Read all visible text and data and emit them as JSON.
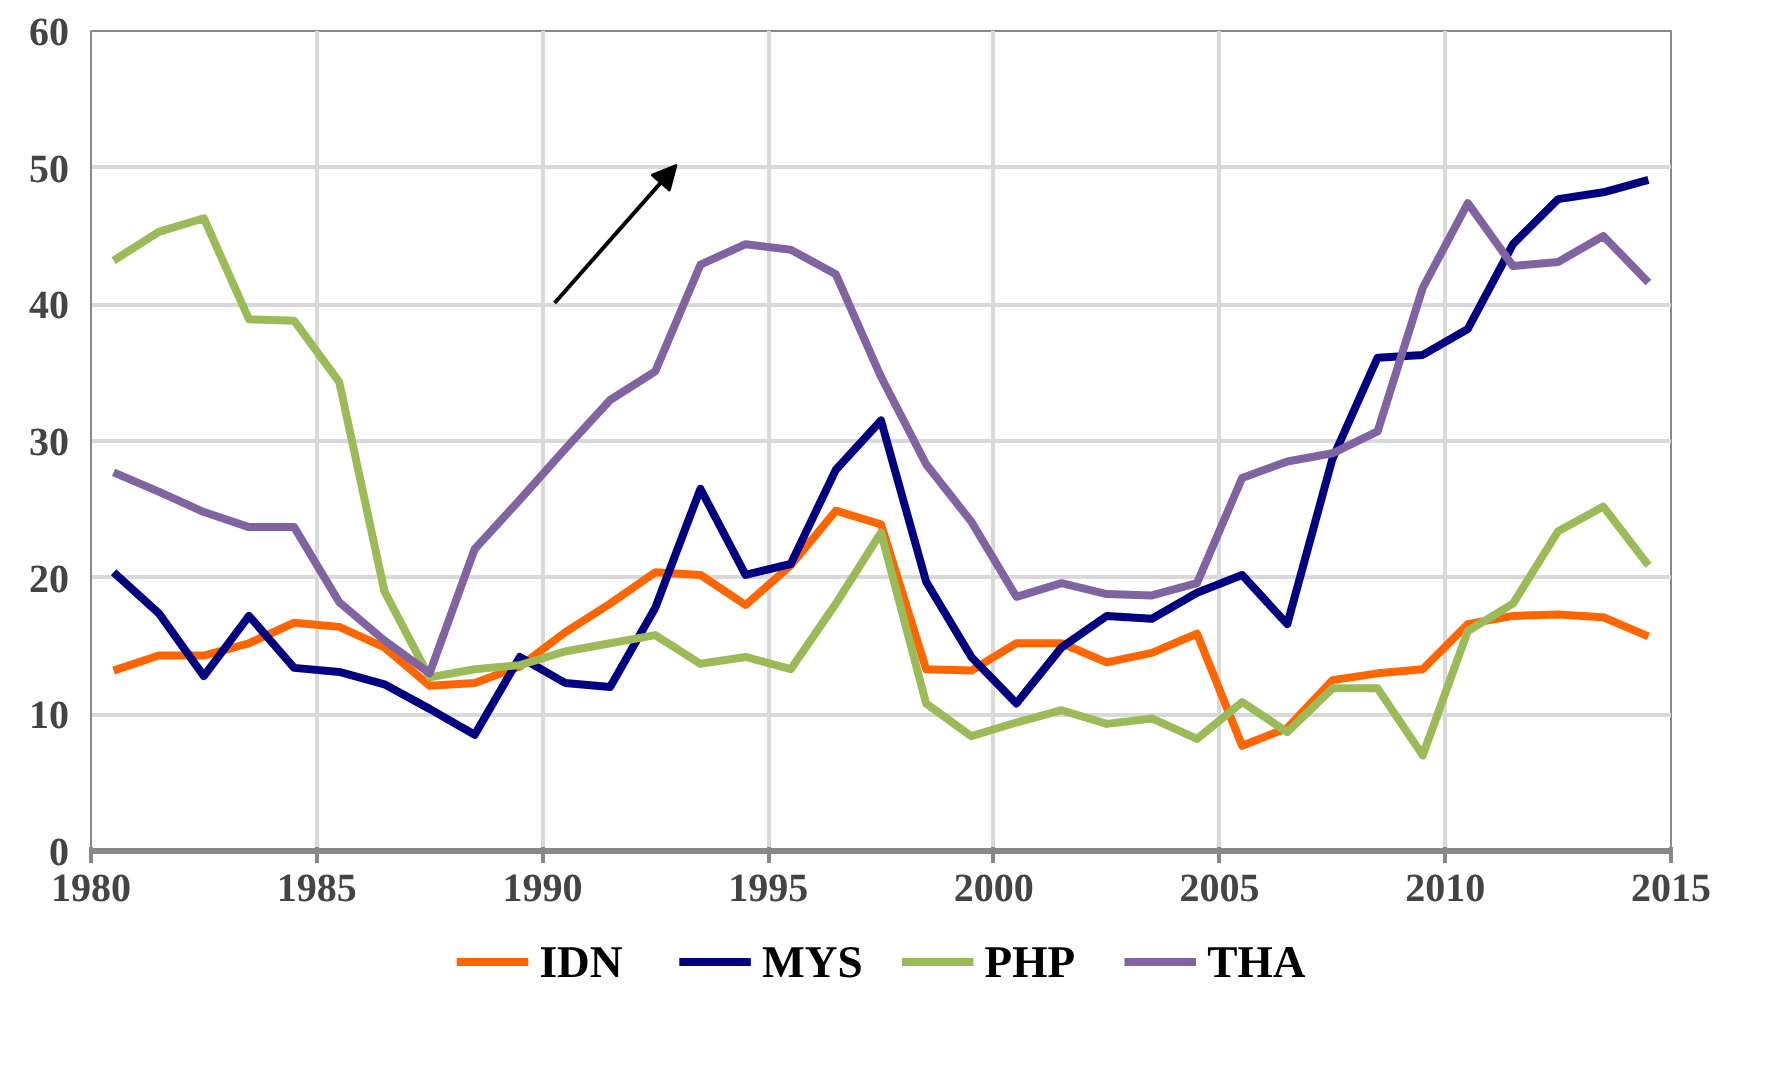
{
  "chart_data": {
    "type": "line",
    "x": [
      1980.5,
      1981.5,
      1982.5,
      1983.5,
      1984.5,
      1985.5,
      1986.5,
      1987.5,
      1988.5,
      1989.5,
      1990.5,
      1991.5,
      1992.5,
      1993.5,
      1994.5,
      1995.5,
      1996.5,
      1997.5,
      1998.5,
      1999.5,
      2000.5,
      2001.5,
      2002.5,
      2003.5,
      2004.5,
      2005.5,
      2006.5,
      2007.5,
      2008.5,
      2009.5,
      2010.5,
      2011.5,
      2012.5,
      2013.5,
      2014.5
    ],
    "series": [
      {
        "name": "IDN",
        "color": "#ff6600",
        "values": [
          13.2,
          14.3,
          14.3,
          15.2,
          16.7,
          16.4,
          14.9,
          12.1,
          12.3,
          13.5,
          16.0,
          18.1,
          20.4,
          20.2,
          18.0,
          20.9,
          24.9,
          23.9,
          13.3,
          13.2,
          15.2,
          15.2,
          13.8,
          14.5,
          15.9,
          7.7,
          9.0,
          12.5,
          13.0,
          13.3,
          16.6,
          17.2,
          17.3,
          17.1,
          15.7
        ]
      },
      {
        "name": "MYS",
        "color": "#000080",
        "values": [
          20.4,
          17.4,
          12.8,
          17.2,
          13.4,
          13.1,
          12.2,
          10.4,
          8.5,
          14.2,
          12.3,
          12.0,
          17.8,
          26.5,
          20.2,
          21.0,
          27.9,
          31.5,
          19.7,
          14.2,
          10.8,
          14.9,
          17.2,
          17.0,
          18.9,
          20.2,
          16.6,
          28.7,
          36.1,
          36.3,
          38.2,
          44.4,
          47.7,
          48.2,
          49.1
        ]
      },
      {
        "name": "PHP",
        "color": "#9bbb59",
        "values": [
          43.2,
          45.3,
          46.3,
          38.9,
          38.8,
          34.3,
          19.0,
          12.7,
          13.3,
          13.6,
          14.6,
          15.2,
          15.8,
          13.7,
          14.2,
          13.3,
          18.1,
          23.3,
          10.8,
          8.4,
          9.4,
          10.3,
          9.3,
          9.7,
          8.2,
          10.9,
          8.7,
          11.9,
          11.9,
          7.0,
          16.1,
          18.1,
          23.4,
          25.2,
          20.9
        ]
      },
      {
        "name": "THA",
        "color": "#8064a2",
        "values": [
          27.7,
          26.3,
          24.8,
          23.7,
          23.7,
          18.2,
          15.4,
          13.0,
          22.1,
          25.7,
          29.4,
          33.0,
          35.1,
          42.9,
          44.4,
          44.0,
          42.2,
          34.7,
          28.3,
          24.1,
          18.6,
          19.6,
          18.8,
          18.7,
          19.6,
          27.3,
          28.5,
          29.1,
          30.7,
          41.2,
          47.4,
          42.8,
          43.1,
          45.0,
          41.6
        ]
      }
    ],
    "xlim": [
      1980,
      2015
    ],
    "xticks": [
      1980,
      1985,
      1990,
      1995,
      2000,
      2005,
      2010,
      2015
    ],
    "ylim": [
      0,
      60
    ],
    "yticks": [
      0,
      10,
      20,
      30,
      40,
      50,
      60
    ],
    "grid": true,
    "legend": "bottom",
    "marker": "none",
    "line_style": "solid"
  }
}
